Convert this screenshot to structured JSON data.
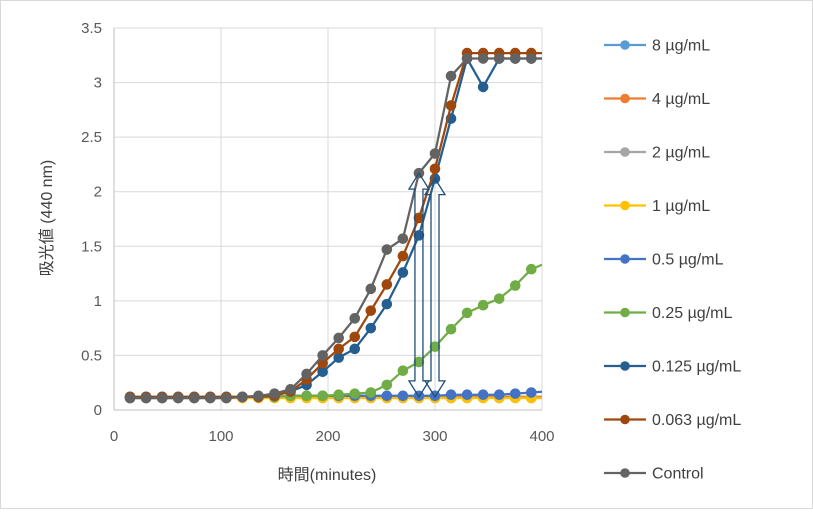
{
  "chart_data": {
    "type": "line",
    "xlabel": "時間(minutes)",
    "ylabel": "吸光値 (440 nm)",
    "xlim": [
      0,
      400
    ],
    "ylim": [
      0,
      3.5
    ],
    "xticks": [
      "0",
      "100",
      "200",
      "300",
      "400"
    ],
    "yticks": [
      "0",
      "0.5",
      "1",
      "1.5",
      "2",
      "2.5",
      "3",
      "3.5"
    ],
    "grid": "on",
    "legend_position": "right",
    "x": [
      15,
      30,
      45,
      60,
      75,
      90,
      105,
      120,
      135,
      150,
      165,
      180,
      195,
      210,
      225,
      240,
      255,
      270,
      285,
      300,
      315,
      330,
      345,
      360,
      375,
      390,
      405
    ],
    "series": [
      {
        "name": "8 µg/mL",
        "color": "#5B9BD5",
        "values": [
          0.12,
          0.12,
          0.12,
          0.12,
          0.12,
          0.12,
          0.12,
          0.12,
          0.12,
          0.12,
          0.12,
          0.12,
          0.12,
          0.12,
          0.12,
          0.12,
          0.12,
          0.12,
          0.12,
          0.12,
          0.12,
          0.12,
          0.12,
          0.12,
          0.12,
          0.12,
          0.12
        ]
      },
      {
        "name": "4 µg/mL",
        "color": "#ED7D31",
        "values": [
          0.12,
          0.12,
          0.12,
          0.12,
          0.12,
          0.12,
          0.12,
          0.12,
          0.12,
          0.12,
          0.12,
          0.12,
          0.12,
          0.12,
          0.12,
          0.12,
          0.12,
          0.12,
          0.12,
          0.12,
          0.12,
          0.12,
          0.12,
          0.12,
          0.12,
          0.12,
          0.12
        ]
      },
      {
        "name": "2 µg/mL",
        "color": "#A5A5A5",
        "values": [
          0.11,
          0.11,
          0.11,
          0.11,
          0.11,
          0.11,
          0.11,
          0.11,
          0.11,
          0.11,
          0.11,
          0.11,
          0.11,
          0.11,
          0.11,
          0.11,
          0.11,
          0.11,
          0.11,
          0.11,
          0.11,
          0.11,
          0.11,
          0.11,
          0.11,
          0.11,
          0.11
        ]
      },
      {
        "name": "1 µg/mL",
        "color": "#FFC000",
        "values": [
          0.11,
          0.11,
          0.11,
          0.11,
          0.11,
          0.11,
          0.11,
          0.11,
          0.11,
          0.11,
          0.11,
          0.11,
          0.11,
          0.11,
          0.11,
          0.11,
          0.11,
          0.11,
          0.11,
          0.11,
          0.11,
          0.11,
          0.11,
          0.11,
          0.11,
          0.11,
          0.11
        ]
      },
      {
        "name": "0.5 µg/mL",
        "color": "#4472C4",
        "values": [
          0.12,
          0.12,
          0.12,
          0.12,
          0.12,
          0.12,
          0.12,
          0.12,
          0.12,
          0.12,
          0.13,
          0.13,
          0.13,
          0.13,
          0.13,
          0.13,
          0.13,
          0.13,
          0.13,
          0.13,
          0.14,
          0.14,
          0.14,
          0.14,
          0.15,
          0.16,
          0.17
        ]
      },
      {
        "name": "0.25 µg/mL",
        "color": "#70AD47",
        "values": [
          0.12,
          0.12,
          0.12,
          0.12,
          0.12,
          0.12,
          0.12,
          0.12,
          0.12,
          0.12,
          0.13,
          0.13,
          0.13,
          0.14,
          0.15,
          0.16,
          0.23,
          0.36,
          0.44,
          0.58,
          0.74,
          0.89,
          0.96,
          1.02,
          1.14,
          1.29,
          1.35
        ]
      },
      {
        "name": "0.125 µg/mL",
        "color": "#255E91",
        "values": [
          0.11,
          0.11,
          0.11,
          0.11,
          0.11,
          0.11,
          0.11,
          0.12,
          0.12,
          0.13,
          0.17,
          0.23,
          0.35,
          0.48,
          0.56,
          0.75,
          0.97,
          1.26,
          1.6,
          2.12,
          2.67,
          3.22,
          2.96,
          3.22,
          3.22,
          3.22,
          3.22
        ]
      },
      {
        "name": "0.063 µg/mL",
        "color": "#9E480E",
        "values": [
          0.12,
          0.12,
          0.12,
          0.12,
          0.12,
          0.12,
          0.12,
          0.12,
          0.12,
          0.13,
          0.17,
          0.28,
          0.43,
          0.56,
          0.67,
          0.91,
          1.15,
          1.41,
          1.76,
          2.21,
          2.79,
          3.27,
          3.27,
          3.27,
          3.27,
          3.27,
          3.27
        ]
      },
      {
        "name": "Control",
        "color": "#636363",
        "values": [
          0.11,
          0.11,
          0.11,
          0.11,
          0.11,
          0.11,
          0.11,
          0.12,
          0.13,
          0.15,
          0.19,
          0.33,
          0.5,
          0.66,
          0.84,
          1.11,
          1.47,
          1.57,
          2.17,
          2.35,
          3.06,
          3.22,
          3.22,
          3.22,
          3.22,
          3.22,
          3.22
        ]
      }
    ],
    "annotations": [
      {
        "type": "double-arrow",
        "x": 285,
        "y_from": 0.12,
        "y_to": 2.17,
        "color": "#1F4E79"
      },
      {
        "type": "double-arrow",
        "x": 300,
        "y_from": 0.12,
        "y_to": 2.12,
        "color": "#1F4E79"
      }
    ]
  }
}
